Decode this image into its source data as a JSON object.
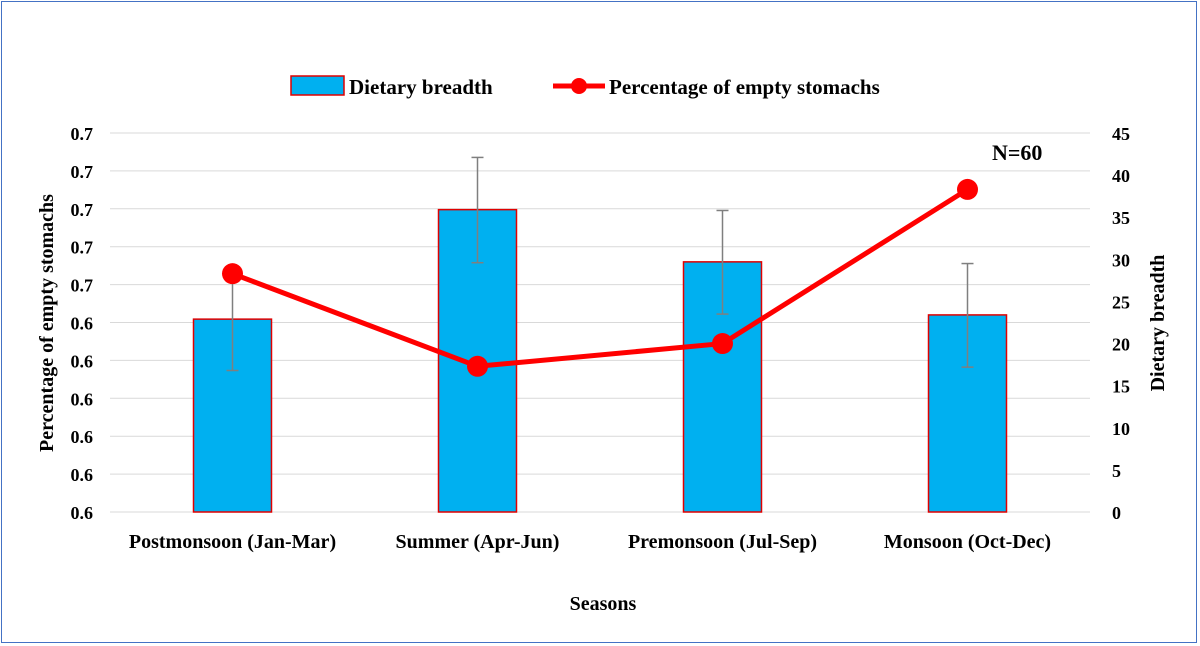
{
  "chart_data": {
    "type": "bar+line",
    "categories": [
      "Postmonsoon (Jan-Mar)",
      "Summer (Apr-Jun)",
      "Premonsoon (Jul-Sep)",
      "Monsoon (Oct-Dec)"
    ],
    "series": [
      {
        "name": "Dietary breadth",
        "type": "bar",
        "axis": "right",
        "values": [
          22.9,
          35.9,
          29.7,
          23.4
        ],
        "error_high": [
          28.5,
          42.1,
          35.8,
          29.5
        ],
        "error_low": [
          16.8,
          29.6,
          23.5,
          17.2
        ]
      },
      {
        "name": "Percentage of empty stomachs",
        "type": "line",
        "axis": "right",
        "values": [
          28.3,
          17.3,
          20.0,
          38.3
        ]
      }
    ],
    "xlabel": "Seasons",
    "ylabel_left": "Percentage of empty stomachs",
    "ylabel_right": "Dietary breadth",
    "left_ticks": [
      "0.6",
      "0.6",
      "0.6",
      "0.6",
      "0.6",
      "0.6",
      "0.7",
      "0.7",
      "0.7",
      "0.7",
      "0.7"
    ],
    "right_ticks": [
      "0",
      "5",
      "10",
      "15",
      "20",
      "25",
      "30",
      "35",
      "40",
      "45"
    ],
    "ylim_right": [
      0,
      45
    ],
    "grid": true,
    "legend_position": "top-center",
    "annotation": "N=60",
    "colors": {
      "bar_fill": "#00b0f0",
      "bar_edge": "#e00000",
      "line": "#ff0000",
      "error_bar": "#7f7f7f",
      "grid": "#d9d9d9",
      "frame": "#4472c4"
    }
  }
}
